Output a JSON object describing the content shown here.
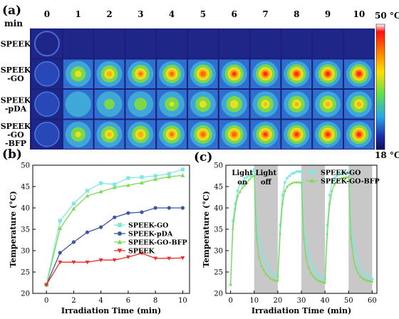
{
  "panel_a": {
    "label": "(a)",
    "unit_label": "min",
    "time_labels": [
      "0",
      "1",
      "2",
      "3",
      "4",
      "5",
      "6",
      "7",
      "8",
      "9",
      "10"
    ],
    "samples": [
      {
        "lines": [
          "SPEEK"
        ],
        "heat": [
          0,
          0,
          0,
          0,
          0,
          0,
          0,
          0,
          0,
          0,
          0
        ]
      },
      {
        "lines": [
          "SPEEK",
          "-GO"
        ],
        "heat": [
          0.08,
          0.55,
          0.68,
          0.74,
          0.78,
          0.82,
          0.84,
          0.86,
          0.87,
          0.88,
          0.89
        ]
      },
      {
        "lines": [
          "SPEEK",
          "-pDA"
        ],
        "heat": [
          0.04,
          0.22,
          0.38,
          0.44,
          0.5,
          0.56,
          0.6,
          0.62,
          0.64,
          0.65,
          0.66
        ]
      },
      {
        "lines": [
          "SPEEK",
          "-GO",
          "-BFP"
        ],
        "heat": [
          0.06,
          0.52,
          0.64,
          0.7,
          0.75,
          0.79,
          0.81,
          0.83,
          0.85,
          0.86,
          0.87
        ]
      }
    ],
    "colorbar": {
      "max_label": "50 °C",
      "min_label": "18 °C"
    }
  },
  "chart_data": [
    {
      "panel": "(b)",
      "type": "line",
      "xlabel": "Irradiation Time (min)",
      "ylabel": "Temperature (°C)",
      "xlim": [
        -1,
        10.5
      ],
      "ylim": [
        20,
        50
      ],
      "xticks": [
        0,
        2,
        4,
        6,
        8,
        10
      ],
      "yticks": [
        20,
        25,
        30,
        35,
        40,
        45,
        50
      ],
      "legend_position": "middle-right",
      "series": [
        {
          "name": "SPEEK-GO",
          "marker": "square",
          "color": "#7fe8e0",
          "x": [
            0,
            1,
            2,
            3,
            4,
            5,
            6,
            7,
            8,
            9,
            10
          ],
          "y": [
            22,
            37,
            41,
            44,
            45.8,
            45.5,
            47,
            47.2,
            47.5,
            48,
            49
          ]
        },
        {
          "name": "SPEEK-pDA",
          "marker": "circle",
          "color": "#3b57a8",
          "x": [
            0,
            1,
            2,
            3,
            4,
            5,
            6,
            7,
            8,
            9,
            10
          ],
          "y": [
            22,
            29.5,
            32,
            34.3,
            35.5,
            37.8,
            38.8,
            39,
            40,
            40,
            40
          ]
        },
        {
          "name": "SPEEK-GO-BFP",
          "marker": "triangle-up",
          "color": "#7ed957",
          "x": [
            0,
            1,
            2,
            3,
            4,
            5,
            6,
            7,
            8,
            9,
            10
          ],
          "y": [
            22,
            35.2,
            39.8,
            42.8,
            43.8,
            44.8,
            45.3,
            45.9,
            46.7,
            47.3,
            47.6
          ]
        },
        {
          "name": "SPEEK",
          "marker": "triangle-down",
          "color": "#e8302a",
          "x": [
            0,
            1,
            2,
            3,
            4,
            5,
            6,
            7,
            8,
            9,
            10
          ],
          "y": [
            22,
            27.3,
            27.3,
            27.3,
            27.8,
            27.8,
            28.5,
            29.4,
            28.2,
            28.2,
            28.3
          ]
        }
      ]
    },
    {
      "panel": "(c)",
      "type": "line",
      "xlabel": "Irradiation Time (min)",
      "ylabel": "Temperature (°C)",
      "xlim": [
        -2,
        62
      ],
      "ylim": [
        20,
        50
      ],
      "xticks": [
        0,
        10,
        20,
        30,
        40,
        50,
        60
      ],
      "yticks": [
        20,
        25,
        30,
        35,
        40,
        45,
        50
      ],
      "legend_position": "top-right",
      "annotations": [
        {
          "text": "Light on"
        },
        {
          "text": "Light off"
        }
      ],
      "shaded_intervals": [
        [
          10,
          20
        ],
        [
          30,
          40
        ],
        [
          50,
          60
        ]
      ],
      "series": [
        {
          "name": "SPEEK-GO",
          "marker": "square",
          "color": "#7fe8e0",
          "x": [
            0,
            1,
            2,
            3,
            4,
            5,
            6,
            7,
            8,
            9,
            10,
            11,
            12,
            13,
            14,
            15,
            16,
            17,
            18,
            19,
            20,
            21,
            22,
            23,
            24,
            25,
            26,
            27,
            28,
            29,
            30,
            31,
            32,
            33,
            34,
            35,
            36,
            37,
            38,
            39,
            40,
            41,
            42,
            43,
            44,
            45,
            46,
            47,
            48,
            49,
            50,
            51,
            52,
            53,
            54,
            55,
            56,
            57,
            58,
            59,
            60
          ],
          "y": [
            22,
            37,
            41,
            44,
            45.8,
            45.5,
            47,
            47.2,
            47.5,
            48,
            49,
            37,
            33,
            30.5,
            28.5,
            27,
            26,
            25,
            24.5,
            24,
            24,
            36,
            43,
            46,
            47,
            47.5,
            48,
            48.2,
            48.5,
            48.5,
            48.5,
            36,
            32,
            29.5,
            27.5,
            26,
            25,
            24.2,
            23.8,
            23.5,
            23.5,
            36,
            43,
            46,
            47,
            47.5,
            48,
            48,
            48.3,
            48.3,
            48.4,
            36,
            32,
            29.5,
            27.5,
            26,
            25,
            24.3,
            24,
            23.6,
            23.4
          ]
        },
        {
          "name": "SPEEK-GO-BFP",
          "marker": "triangle-up",
          "color": "#7ed957",
          "x": [
            0,
            1,
            2,
            3,
            4,
            5,
            6,
            7,
            8,
            9,
            10,
            11,
            12,
            13,
            14,
            15,
            16,
            17,
            18,
            19,
            20,
            21,
            22,
            23,
            24,
            25,
            26,
            27,
            28,
            29,
            30,
            31,
            32,
            33,
            34,
            35,
            36,
            37,
            38,
            39,
            40,
            41,
            42,
            43,
            44,
            45,
            46,
            47,
            48,
            49,
            50,
            51,
            52,
            53,
            54,
            55,
            56,
            57,
            58,
            59,
            60
          ],
          "y": [
            22,
            35.2,
            39.8,
            42.8,
            43.8,
            44.8,
            45.3,
            45.9,
            46.7,
            47.3,
            47.6,
            33,
            28.5,
            26.5,
            25.5,
            24.5,
            24,
            23.5,
            23.2,
            23,
            23,
            34,
            41,
            44,
            45,
            45.5,
            45.8,
            46,
            46,
            46,
            46,
            33,
            28.5,
            26,
            24.8,
            24,
            23.5,
            23,
            22.8,
            22.6,
            22.5,
            34,
            41,
            44,
            45.5,
            46.2,
            46.6,
            47,
            47.1,
            47.2,
            47.3,
            33,
            28.5,
            26,
            24.8,
            24,
            23.5,
            23.2,
            23,
            22.9,
            22.8
          ]
        }
      ]
    }
  ]
}
